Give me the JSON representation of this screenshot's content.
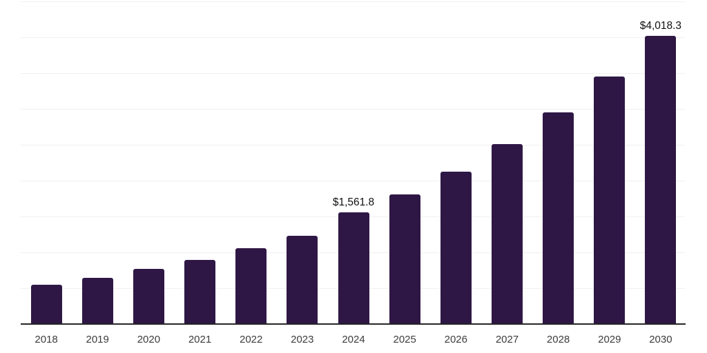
{
  "chart_data": {
    "type": "bar",
    "title": "",
    "xlabel": "",
    "ylabel": "",
    "categories": [
      "2018",
      "2019",
      "2020",
      "2021",
      "2022",
      "2023",
      "2024",
      "2025",
      "2026",
      "2027",
      "2028",
      "2029",
      "2030"
    ],
    "values": [
      550,
      640,
      770,
      890,
      1060,
      1230,
      1561.8,
      1805,
      2125,
      2510,
      2950,
      3450,
      4018.3
    ],
    "data_labels": {
      "2024": "$1,561.8",
      "2030": "$4,018.3"
    },
    "ylim": [
      0,
      4500
    ],
    "gridline_step": 500,
    "grid": "horizontal",
    "legend_position": "none",
    "y_axis_tick_labels_visible": false,
    "colors": {
      "bar": "#2e1745",
      "gridline": "#f0f0f0",
      "axis_line": "#262626",
      "value_label_text": "#111111",
      "tick_label_text": "#3c3c3c",
      "background": "#ffffff"
    }
  }
}
